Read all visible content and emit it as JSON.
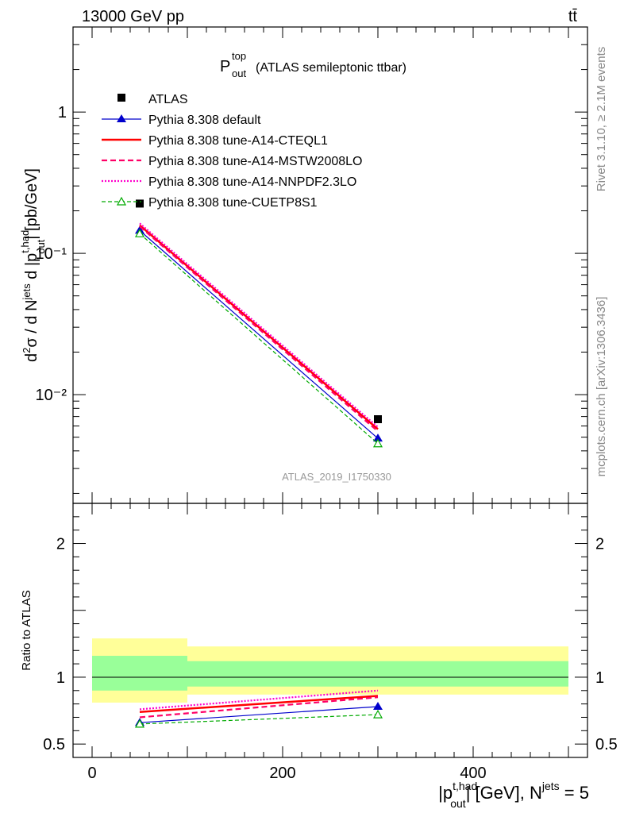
{
  "header": {
    "energy_label": "13000 GeV pp",
    "process_label": "tt̄"
  },
  "side": {
    "rivet_label": "Rivet 3.1.10, ≥ 2.1M events",
    "mcplots_label": "mcplots.cern.ch [arXiv:1306.3436]"
  },
  "colors": {
    "atlas": "#000000",
    "default": "#0000cc",
    "cteql1": "#ff0000",
    "mstw": "#ff0066",
    "nnpdf": "#ff00cc",
    "cuetp8s1": "#00aa00",
    "band_outer": "#ffff99",
    "band_inner": "#99ff99"
  },
  "chart_data": [
    {
      "type": "line",
      "title_main": "P",
      "title_sup": "top",
      "title_sub": "out",
      "title_rest": "(ATLAS semileptonic ttbar)",
      "ylabel": "d²σ / d N^jets d |p_out^t,had| [pb/GeV]",
      "yscale": "log",
      "ylim": [
        0.0017,
        4.0
      ],
      "xlim": [
        -20,
        520
      ],
      "ytick_labels": [
        "10⁻²",
        "10⁻¹",
        "1"
      ],
      "watermark": "ATLAS_2019_I1750330",
      "series": [
        {
          "name": "ATLAS",
          "x": [
            50,
            300
          ],
          "y": [
            0.225,
            0.0067
          ],
          "style": "data"
        },
        {
          "name": "Pythia 8.308 default",
          "x": [
            50,
            300
          ],
          "y": [
            0.145,
            0.0049
          ],
          "style": "solid",
          "marker": "triangle"
        },
        {
          "name": "Pythia 8.308 tune-A14-CTEQL1",
          "x": [
            50,
            300
          ],
          "y": [
            0.158,
            0.0057
          ],
          "style": "solid-thick"
        },
        {
          "name": "Pythia 8.308 tune-A14-MSTW2008LO",
          "x": [
            50,
            300
          ],
          "y": [
            0.155,
            0.0055
          ],
          "style": "dashed"
        },
        {
          "name": "Pythia 8.308 tune-A14-NNPDF2.3LO",
          "x": [
            50,
            300
          ],
          "y": [
            0.163,
            0.0059
          ],
          "style": "dotted"
        },
        {
          "name": "Pythia 8.308 tune-CUETP8S1",
          "x": [
            50,
            300
          ],
          "y": [
            0.138,
            0.0045
          ],
          "style": "dashed-thin",
          "marker": "open-triangle"
        }
      ]
    },
    {
      "type": "line",
      "ylabel": "Ratio to ATLAS",
      "ylim": [
        0.4,
        2.3
      ],
      "xlim": [
        -20,
        520
      ],
      "ytick_labels": [
        "0.5",
        "1",
        "2"
      ],
      "xtick_labels": [
        "0",
        "200",
        "400"
      ],
      "xlabel": "|p_out^t,had| [GeV], N^jets = 5",
      "bands": [
        {
          "x": [
            0,
            100
          ],
          "outer": [
            0.81,
            1.29
          ],
          "inner": [
            0.9,
            1.16
          ]
        },
        {
          "x": [
            100,
            500
          ],
          "outer": [
            0.87,
            1.23
          ],
          "inner": [
            0.93,
            1.12
          ]
        }
      ],
      "series": [
        {
          "name": "Pythia 8.308 default",
          "x": [
            50,
            300
          ],
          "y": [
            0.66,
            0.78
          ]
        },
        {
          "name": "Pythia 8.308 tune-A14-CTEQL1",
          "x": [
            50,
            300
          ],
          "y": [
            0.74,
            0.86
          ]
        },
        {
          "name": "Pythia 8.308 tune-A14-MSTW2008LO",
          "x": [
            50,
            300
          ],
          "y": [
            0.7,
            0.85
          ]
        },
        {
          "name": "Pythia 8.308 tune-A14-NNPDF2.3LO",
          "x": [
            50,
            300
          ],
          "y": [
            0.76,
            0.9
          ]
        },
        {
          "name": "Pythia 8.308 tune-CUETP8S1",
          "x": [
            50,
            300
          ],
          "y": [
            0.65,
            0.72
          ]
        }
      ]
    }
  ]
}
